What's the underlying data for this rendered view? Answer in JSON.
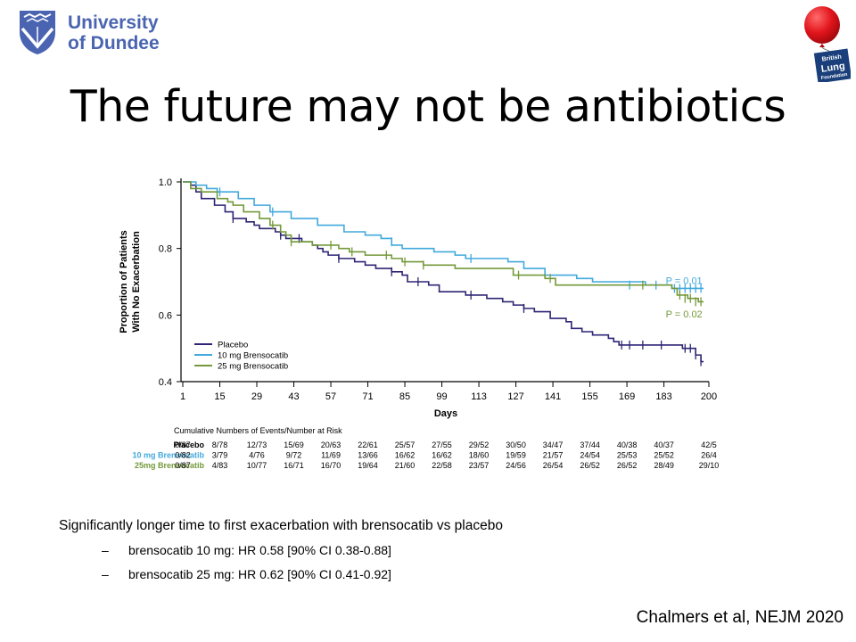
{
  "header": {
    "university_line1": "University",
    "university_line2": "of Dundee",
    "blf_line1": "British",
    "blf_line2": "Lung",
    "blf_line3": "Foundation"
  },
  "slide": {
    "title": "The future may not be antibiotics",
    "summary": "Significantly longer time to first exacerbation with brensocatib vs placebo",
    "bullets": [
      {
        "dash": "–",
        "text": "brensocatib 10 mg: HR 0.58 [90% CI 0.38-0.88]"
      },
      {
        "dash": "–",
        "text": "brensocatib 25 mg: HR 0.62 [90% CI 0.41-0.92]"
      }
    ],
    "citation": "Chalmers et al, NEJM 2020"
  },
  "colors": {
    "placebo": "#2e2574",
    "bren10": "#41a9dd",
    "bren25": "#74993a",
    "dundee": "#4a64b1",
    "balloon": "#e1151c",
    "blf": "#1a3f7a"
  },
  "chart_data": {
    "type": "line",
    "subtype": "kaplan-meier",
    "xlabel": "Days",
    "ylabel_line1": "Proportion of Patients",
    "ylabel_line2": "With No Exacerbation",
    "xlim": [
      1,
      200
    ],
    "ylim": [
      0.4,
      1.0
    ],
    "xticks": [
      1,
      15,
      29,
      43,
      57,
      71,
      85,
      99,
      113,
      127,
      141,
      155,
      169,
      183,
      200
    ],
    "yticks": [
      {
        "v": 0.4,
        "label": "0.4"
      },
      {
        "v": 0.6,
        "label": "0.6"
      },
      {
        "v": 0.8,
        "label": "0.8"
      },
      {
        "v": 1.0,
        "label": "1.0"
      }
    ],
    "legend_position": "bottom-left",
    "series": [
      {
        "name": "Placebo",
        "key": "placebo",
        "color": "#2e2574",
        "steps": [
          [
            1,
            1.0
          ],
          [
            4,
            0.99
          ],
          [
            6,
            0.97
          ],
          [
            8,
            0.95
          ],
          [
            13,
            0.93
          ],
          [
            17,
            0.91
          ],
          [
            20,
            0.89
          ],
          [
            25,
            0.88
          ],
          [
            28,
            0.87
          ],
          [
            30,
            0.86
          ],
          [
            36,
            0.85
          ],
          [
            38,
            0.84
          ],
          [
            40,
            0.83
          ],
          [
            46,
            0.82
          ],
          [
            50,
            0.81
          ],
          [
            52,
            0.8
          ],
          [
            54,
            0.79
          ],
          [
            56,
            0.78
          ],
          [
            60,
            0.77
          ],
          [
            66,
            0.76
          ],
          [
            70,
            0.75
          ],
          [
            74,
            0.74
          ],
          [
            80,
            0.73
          ],
          [
            84,
            0.72
          ],
          [
            86,
            0.7
          ],
          [
            94,
            0.69
          ],
          [
            98,
            0.67
          ],
          [
            108,
            0.66
          ],
          [
            116,
            0.65
          ],
          [
            122,
            0.64
          ],
          [
            126,
            0.63
          ],
          [
            130,
            0.62
          ],
          [
            134,
            0.61
          ],
          [
            140,
            0.59
          ],
          [
            146,
            0.58
          ],
          [
            148,
            0.56
          ],
          [
            152,
            0.55
          ],
          [
            156,
            0.54
          ],
          [
            162,
            0.53
          ],
          [
            164,
            0.52
          ],
          [
            166,
            0.51
          ],
          [
            190,
            0.5
          ],
          [
            195,
            0.48
          ],
          [
            197,
            0.46
          ]
        ],
        "censors": [
          [
            20,
            0.89
          ],
          [
            38,
            0.84
          ],
          [
            45,
            0.83
          ],
          [
            60,
            0.77
          ],
          [
            80,
            0.73
          ],
          [
            90,
            0.7
          ],
          [
            110,
            0.66
          ],
          [
            130,
            0.62
          ],
          [
            167,
            0.51
          ],
          [
            170,
            0.51
          ],
          [
            175,
            0.51
          ],
          [
            182,
            0.51
          ],
          [
            191,
            0.5
          ],
          [
            193,
            0.5
          ],
          [
            195,
            0.48
          ],
          [
            197,
            0.46
          ]
        ]
      },
      {
        "name": "10 mg Brensocatib",
        "key": "bren10",
        "color": "#41a9dd",
        "steps": [
          [
            1,
            1.0
          ],
          [
            6,
            0.99
          ],
          [
            10,
            0.98
          ],
          [
            14,
            0.97
          ],
          [
            22,
            0.95
          ],
          [
            28,
            0.93
          ],
          [
            34,
            0.91
          ],
          [
            42,
            0.89
          ],
          [
            52,
            0.87
          ],
          [
            62,
            0.85
          ],
          [
            70,
            0.84
          ],
          [
            76,
            0.83
          ],
          [
            80,
            0.81
          ],
          [
            84,
            0.8
          ],
          [
            96,
            0.79
          ],
          [
            104,
            0.78
          ],
          [
            108,
            0.77
          ],
          [
            124,
            0.76
          ],
          [
            130,
            0.74
          ],
          [
            138,
            0.72
          ],
          [
            150,
            0.71
          ],
          [
            156,
            0.7
          ],
          [
            176,
            0.69
          ],
          [
            186,
            0.68
          ],
          [
            198,
            0.68
          ]
        ],
        "censors": [
          [
            15,
            0.97
          ],
          [
            35,
            0.91
          ],
          [
            80,
            0.82
          ],
          [
            110,
            0.77
          ],
          [
            170,
            0.69
          ],
          [
            180,
            0.69
          ],
          [
            187,
            0.68
          ],
          [
            189,
            0.68
          ],
          [
            191,
            0.68
          ],
          [
            193,
            0.68
          ],
          [
            195,
            0.68
          ],
          [
            197,
            0.68
          ]
        ]
      },
      {
        "name": "25 mg Brensocatib",
        "key": "bren25",
        "color": "#74993a",
        "steps": [
          [
            1,
            1.0
          ],
          [
            4,
            0.98
          ],
          [
            8,
            0.97
          ],
          [
            14,
            0.95
          ],
          [
            18,
            0.94
          ],
          [
            20,
            0.93
          ],
          [
            24,
            0.91
          ],
          [
            30,
            0.89
          ],
          [
            34,
            0.87
          ],
          [
            38,
            0.85
          ],
          [
            40,
            0.84
          ],
          [
            42,
            0.82
          ],
          [
            50,
            0.81
          ],
          [
            60,
            0.8
          ],
          [
            64,
            0.79
          ],
          [
            70,
            0.78
          ],
          [
            80,
            0.77
          ],
          [
            84,
            0.76
          ],
          [
            92,
            0.75
          ],
          [
            104,
            0.74
          ],
          [
            126,
            0.72
          ],
          [
            138,
            0.71
          ],
          [
            142,
            0.69
          ],
          [
            176,
            0.69
          ],
          [
            186,
            0.68
          ],
          [
            188,
            0.66
          ],
          [
            192,
            0.65
          ],
          [
            196,
            0.64
          ]
        ],
        "censors": [
          [
            35,
            0.87
          ],
          [
            42,
            0.82
          ],
          [
            57,
            0.81
          ],
          [
            65,
            0.79
          ],
          [
            78,
            0.78
          ],
          [
            85,
            0.76
          ],
          [
            92,
            0.75
          ],
          [
            128,
            0.72
          ],
          [
            140,
            0.71
          ],
          [
            175,
            0.69
          ],
          [
            189,
            0.66
          ],
          [
            191,
            0.65
          ],
          [
            193,
            0.65
          ],
          [
            195,
            0.64
          ],
          [
            197,
            0.64
          ]
        ]
      }
    ],
    "annotations": [
      {
        "text": "P = 0.01",
        "key": "bren10",
        "x": 183,
        "y": 0.693
      },
      {
        "text": "P = 0.02",
        "key": "bren25",
        "x": 183,
        "y": 0.593
      }
    ],
    "risk_table": {
      "title": "Cumulative Numbers of Events/Number at Risk",
      "rows": [
        {
          "label": "Placebo",
          "key": "placebo",
          "values": [
            "0/87",
            "8/78",
            "12/73",
            "15/69",
            "20/63",
            "22/61",
            "25/57",
            "27/55",
            "29/52",
            "30/50",
            "34/47",
            "37/44",
            "40/38",
            "40/37",
            "42/5"
          ]
        },
        {
          "label": "10 mg Brensocatib",
          "key": "bren10",
          "values": [
            "0/82",
            "3/79",
            "4/76",
            "9/72",
            "11/69",
            "13/66",
            "16/62",
            "16/62",
            "18/60",
            "19/59",
            "21/57",
            "24/54",
            "25/53",
            "25/52",
            "26/4"
          ]
        },
        {
          "label": "25mg Brensocatib",
          "key": "bren25",
          "values": [
            "0/87",
            "4/83",
            "10/77",
            "16/71",
            "16/70",
            "19/64",
            "21/60",
            "22/58",
            "23/57",
            "24/56",
            "26/54",
            "26/52",
            "26/52",
            "28/49",
            "29/10"
          ]
        }
      ]
    }
  }
}
